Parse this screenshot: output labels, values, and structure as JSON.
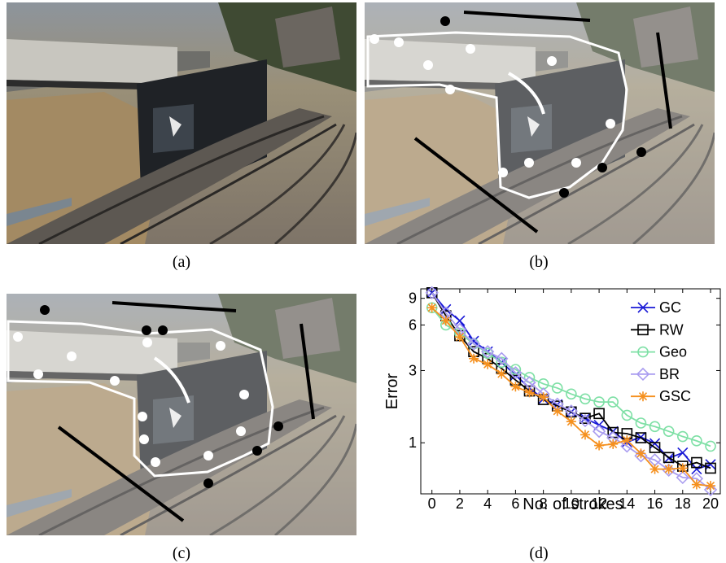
{
  "figure": {
    "captions": [
      "(a)",
      "(b)",
      "(c)",
      "(d)"
    ]
  },
  "chart_data": {
    "type": "line",
    "xlabel": "No. of strokes",
    "ylabel": "Error",
    "x": [
      0,
      1,
      2,
      3,
      4,
      5,
      6,
      7,
      8,
      9,
      10,
      11,
      12,
      13,
      14,
      15,
      16,
      17,
      18,
      19,
      20
    ],
    "xlim": [
      -0.8,
      20.7
    ],
    "xticks": [
      0,
      2,
      4,
      6,
      8,
      10,
      12,
      14,
      16,
      18,
      20
    ],
    "ylim": [
      0.46,
      10.4
    ],
    "yticks": [
      1,
      3,
      6,
      9
    ],
    "yscale": "log",
    "legend": "upper right",
    "series": [
      {
        "name": "GC",
        "color": "#1a1ad6",
        "marker": "x",
        "values": [
          9.8,
          7.6,
          6.4,
          4.7,
          4.0,
          3.4,
          2.8,
          2.3,
          1.95,
          1.79,
          1.6,
          1.45,
          1.31,
          1.19,
          1.01,
          1.09,
          0.99,
          0.79,
          0.86,
          0.67,
          0.72
        ]
      },
      {
        "name": "RW",
        "color": "#000000",
        "marker": "square",
        "values": [
          9.8,
          6.9,
          5.1,
          4.0,
          3.6,
          3.1,
          2.6,
          2.2,
          1.93,
          1.75,
          1.6,
          1.45,
          1.56,
          1.17,
          1.15,
          1.08,
          0.93,
          0.8,
          0.7,
          0.74,
          0.68
        ]
      },
      {
        "name": "Geo",
        "color": "#7fe0a6",
        "marker": "circle",
        "values": [
          7.8,
          6.0,
          5.3,
          4.5,
          3.9,
          3.4,
          3.05,
          2.7,
          2.45,
          2.3,
          2.1,
          1.95,
          1.86,
          1.86,
          1.52,
          1.35,
          1.28,
          1.19,
          1.1,
          1.03,
          0.95
        ]
      },
      {
        "name": "BR",
        "color": "#a99cf0",
        "marker": "diamond",
        "values": [
          9.8,
          7.2,
          5.6,
          4.5,
          4.0,
          3.6,
          2.9,
          2.5,
          2.1,
          1.8,
          1.62,
          1.4,
          1.19,
          1.08,
          0.95,
          0.82,
          0.77,
          0.66,
          0.59,
          0.58,
          0.49
        ]
      },
      {
        "name": "GSC",
        "color": "#f5901e",
        "marker": "star",
        "values": [
          7.8,
          6.4,
          5.0,
          3.6,
          3.3,
          2.85,
          2.35,
          2.15,
          2.0,
          1.62,
          1.38,
          1.13,
          0.96,
          0.98,
          1.04,
          0.85,
          0.67,
          0.67,
          0.68,
          0.53,
          0.52
        ]
      }
    ]
  }
}
